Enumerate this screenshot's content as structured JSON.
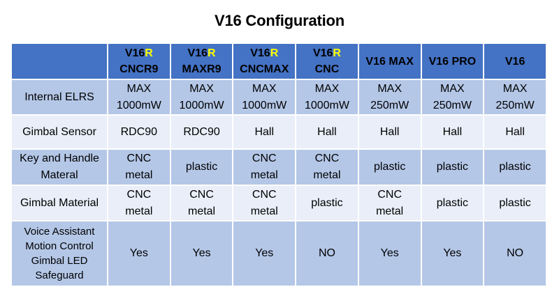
{
  "title": "V16 Configuration",
  "colors": {
    "header_bg": "#4472C4",
    "band_dark": "#B4C7E7",
    "band_light": "#E9EEF8",
    "separator": "#FFFFFF",
    "header_text": "#000000",
    "header_accent_text": "#FFFF00",
    "body_text": "#000000"
  },
  "table": {
    "columns": [
      {
        "name": "V16",
        "accent": "R",
        "variant": "CNCR9"
      },
      {
        "name": "V16",
        "accent": "R",
        "variant": "MAXR9"
      },
      {
        "name": "V16",
        "accent": "R",
        "variant": "CNCMAX"
      },
      {
        "name": "V16",
        "accent": "R",
        "variant": "CNC"
      },
      {
        "name": "V16 MAX",
        "accent": "",
        "variant": ""
      },
      {
        "name": "V16 PRO",
        "accent": "",
        "variant": ""
      },
      {
        "name": "V16",
        "accent": "",
        "variant": ""
      }
    ],
    "rows": [
      {
        "label": "Internal ELRS",
        "values": [
          "MAX\n1000mW",
          "MAX\n1000mW",
          "MAX\n1000mW",
          "MAX\n1000mW",
          "MAX\n250mW",
          "MAX\n250mW",
          "MAX\n250mW"
        ]
      },
      {
        "label": "Gimbal Sensor",
        "values": [
          "RDC90",
          "RDC90",
          "Hall",
          "Hall",
          "Hall",
          "Hall",
          "Hall"
        ]
      },
      {
        "label": "Key and Handle\nMateral",
        "values": [
          "CNC\nmetal",
          "plastic",
          "CNC\nmetal",
          "CNC\nmetal",
          "plastic",
          "plastic",
          "plastic"
        ]
      },
      {
        "label": "Gimbal Material",
        "values": [
          "CNC\nmetal",
          "CNC\nmetal",
          "CNC\nmetal",
          "plastic",
          "CNC\nmetal",
          "plastic",
          "plastic"
        ]
      },
      {
        "label": "Voice Assistant\nMotion Control\nGimbal LED\nSafeguard",
        "values": [
          "Yes",
          "Yes",
          "Yes",
          "NO",
          "Yes",
          "Yes",
          "NO"
        ]
      }
    ]
  },
  "chart_data": {
    "type": "table",
    "title": "V16 Configuration",
    "columns": [
      "",
      "V16R CNCR9",
      "V16R MAXR9",
      "V16R CNCMAX",
      "V16R CNC",
      "V16 MAX",
      "V16 PRO",
      "V16"
    ],
    "rows": [
      [
        "Internal ELRS",
        "MAX 1000mW",
        "MAX 1000mW",
        "MAX 1000mW",
        "MAX 1000mW",
        "MAX 250mW",
        "MAX 250mW",
        "MAX 250mW"
      ],
      [
        "Gimbal Sensor",
        "RDC90",
        "RDC90",
        "Hall",
        "Hall",
        "Hall",
        "Hall",
        "Hall"
      ],
      [
        "Key and Handle Materal",
        "CNC metal",
        "plastic",
        "CNC metal",
        "CNC metal",
        "plastic",
        "plastic",
        "plastic"
      ],
      [
        "Gimbal Material",
        "CNC metal",
        "CNC metal",
        "CNC metal",
        "plastic",
        "CNC metal",
        "plastic",
        "plastic"
      ],
      [
        "Voice Assistant Motion Control Gimbal LED Safeguard",
        "Yes",
        "Yes",
        "Yes",
        "NO",
        "Yes",
        "Yes",
        "NO"
      ]
    ]
  }
}
